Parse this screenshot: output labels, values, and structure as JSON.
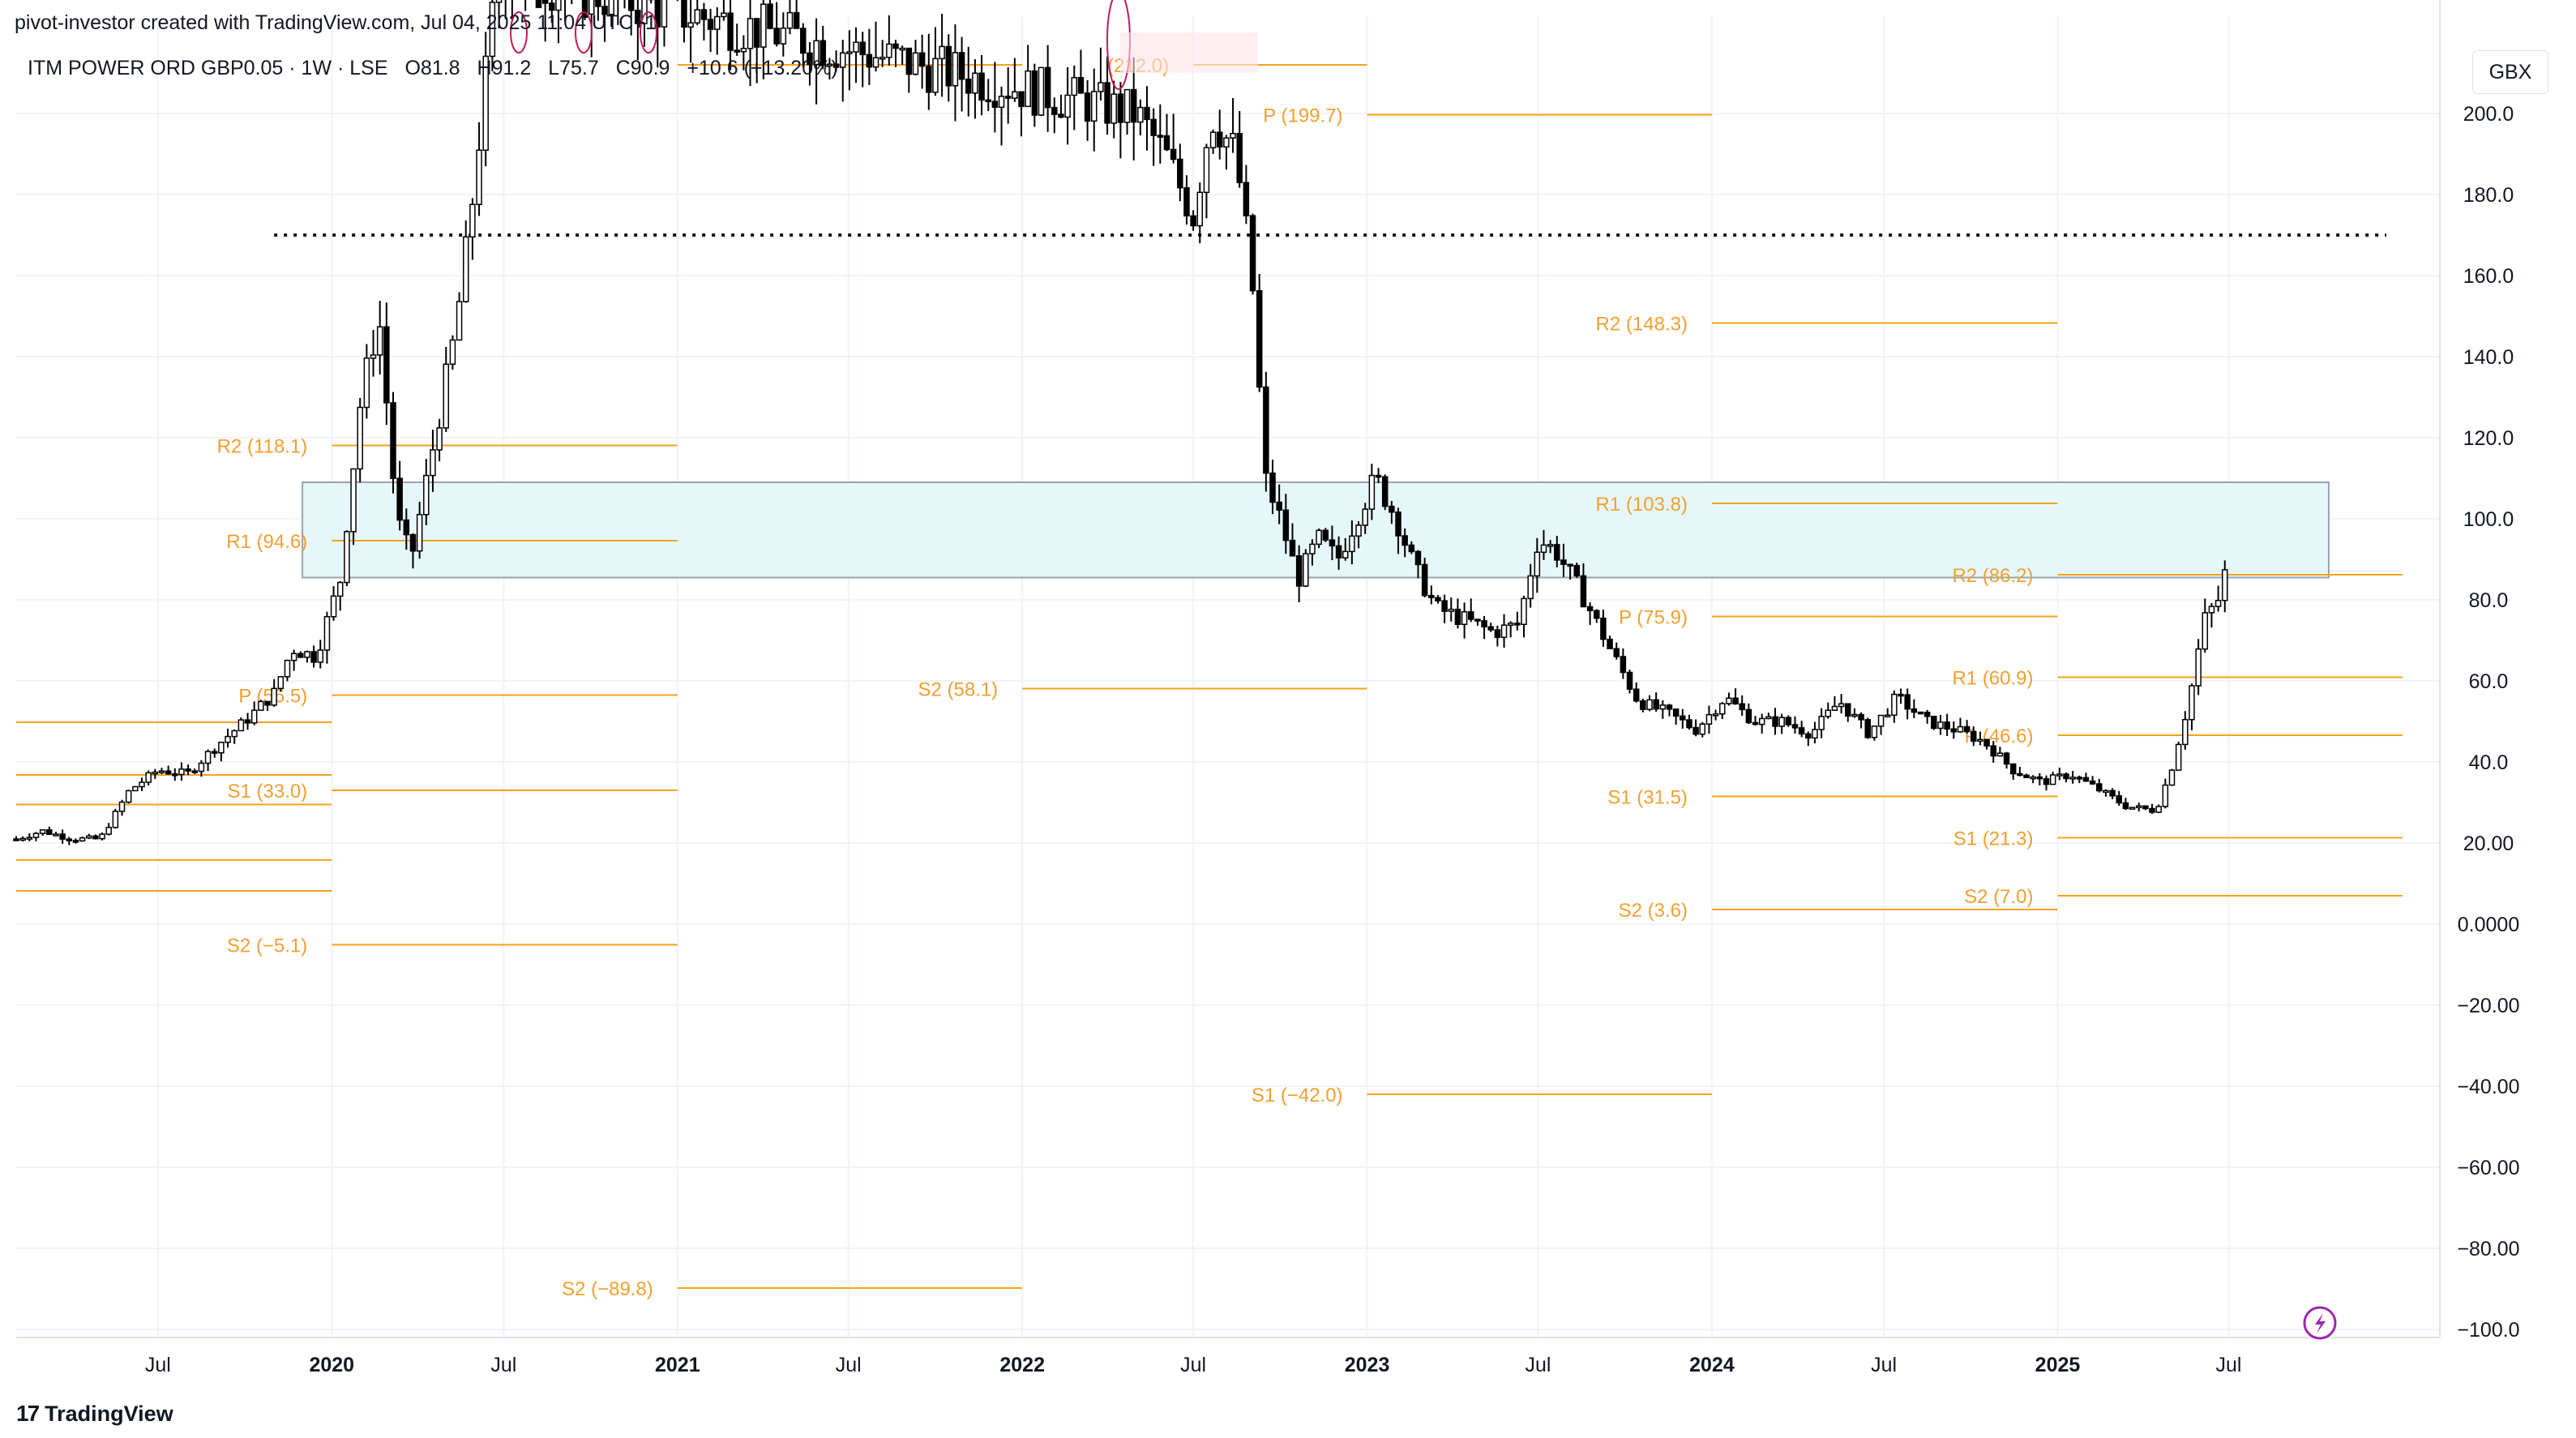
{
  "header": {
    "created_line": "pivot-investor created with TradingView.com, Jul 04, 2025 11:04 UTC+1",
    "symbol": "ITM POWER ORD GBP0.05 · 1W · LSE",
    "open": "O81.8",
    "high": "H91.2",
    "low": "L75.7",
    "close": "C90.9",
    "change": "+10.6 (+13.20%)"
  },
  "currency": "GBX",
  "footer_logo": "TradingView",
  "colors": {
    "pivot": "#f7a21b",
    "pivot_text": "#f0a030",
    "zone_fill": "#e6f7fa",
    "zone_stroke": "#9aa3ad",
    "candle": "#000000",
    "grid": "#f0f3fa",
    "dotted": "#131722"
  },
  "chart_data": {
    "type": "candlestick",
    "title": "ITM POWER ORD GBP0.05 · 1W · LSE",
    "ylabel": "GBX",
    "ylim": [
      -100,
      220
    ],
    "xlim": [
      "2019-02-01",
      "2026-02-01"
    ],
    "y_ticks": [
      "200.0",
      "180.0",
      "160.0",
      "140.0",
      "120.0",
      "100.0",
      "80.0",
      "60.0",
      "40.0",
      "20.00",
      "0.0000",
      "−20.00",
      "−40.00",
      "−60.00",
      "−80.00",
      "−100.0"
    ],
    "x_ticks": [
      {
        "label": "Jul",
        "date": "2019-07-01",
        "bold": false
      },
      {
        "label": "2020",
        "date": "2020-01-01",
        "bold": true
      },
      {
        "label": "Jul",
        "date": "2020-07-01",
        "bold": false
      },
      {
        "label": "2021",
        "date": "2021-01-01",
        "bold": true
      },
      {
        "label": "Jul",
        "date": "2021-07-01",
        "bold": false
      },
      {
        "label": "2022",
        "date": "2022-01-01",
        "bold": true
      },
      {
        "label": "Jul",
        "date": "2022-07-01",
        "bold": false
      },
      {
        "label": "2023",
        "date": "2023-01-01",
        "bold": true
      },
      {
        "label": "Jul",
        "date": "2023-07-01",
        "bold": false
      },
      {
        "label": "2024",
        "date": "2024-01-01",
        "bold": true
      },
      {
        "label": "Jul",
        "date": "2024-07-01",
        "bold": false
      },
      {
        "label": "2025",
        "date": "2025-01-01",
        "bold": true
      },
      {
        "label": "Jul",
        "date": "2025-07-01",
        "bold": false
      }
    ],
    "pivot_levels": [
      {
        "label": "R2 (118.1)",
        "value": 118.1,
        "from": "2020-01-01",
        "to": "2021-01-01"
      },
      {
        "label": "R1 (94.6)",
        "value": 94.6,
        "from": "2020-01-01",
        "to": "2021-01-01"
      },
      {
        "label": "P (56.5)",
        "value": 56.5,
        "from": "2020-01-01",
        "to": "2021-01-01"
      },
      {
        "label": "S1 (33.0)",
        "value": 33.0,
        "from": "2020-01-01",
        "to": "2021-01-01"
      },
      {
        "label": "S2 (−5.1)",
        "value": -5.1,
        "from": "2020-01-01",
        "to": "2021-01-01"
      },
      {
        "label": "",
        "value": 49.8,
        "from": "2019-02-01",
        "to": "2020-01-01"
      },
      {
        "label": "",
        "value": 36.8,
        "from": "2019-02-01",
        "to": "2020-01-01"
      },
      {
        "label": "",
        "value": 29.5,
        "from": "2019-02-01",
        "to": "2020-01-01"
      },
      {
        "label": "",
        "value": 15.8,
        "from": "2019-02-01",
        "to": "2020-01-01"
      },
      {
        "label": "",
        "value": 8.2,
        "from": "2019-02-01",
        "to": "2020-01-01"
      },
      {
        "label": "",
        "value": 212,
        "from": "2021-01-01",
        "to": "2022-01-01"
      },
      {
        "label": "S2 (−89.8)",
        "value": -89.8,
        "from": "2021-01-01",
        "to": "2022-01-01"
      },
      {
        "label": "(212.0)",
        "value": 212.0,
        "from": "2022-07-01",
        "to": "2023-01-01"
      },
      {
        "label": "P (199.7)",
        "value": 199.7,
        "from": "2023-01-01",
        "to": "2024-01-01"
      },
      {
        "label": "S1 (−42.0)",
        "value": -42.0,
        "from": "2023-01-01",
        "to": "2024-01-01"
      },
      {
        "label": "S2 (58.1)",
        "value": 58.1,
        "from": "2022-01-01",
        "to": "2023-01-01"
      },
      {
        "label": "R2 (148.3)",
        "value": 148.3,
        "from": "2024-01-01",
        "to": "2025-01-01"
      },
      {
        "label": "R1 (103.8)",
        "value": 103.8,
        "from": "2024-01-01",
        "to": "2025-01-01"
      },
      {
        "label": "P (75.9)",
        "value": 75.9,
        "from": "2024-01-01",
        "to": "2025-01-01"
      },
      {
        "label": "S1 (31.5)",
        "value": 31.5,
        "from": "2024-01-01",
        "to": "2025-01-01"
      },
      {
        "label": "S2 (3.6)",
        "value": 3.6,
        "from": "2024-01-01",
        "to": "2025-01-01"
      },
      {
        "label": "R2 (86.2)",
        "value": 86.2,
        "from": "2025-01-01",
        "to": "2026-01-01"
      },
      {
        "label": "R1 (60.9)",
        "value": 60.9,
        "from": "2025-01-01",
        "to": "2026-01-01"
      },
      {
        "label": "P (46.6)",
        "value": 46.6,
        "from": "2025-01-01",
        "to": "2026-01-01"
      },
      {
        "label": "S1 (21.3)",
        "value": 21.3,
        "from": "2025-01-01",
        "to": "2026-01-01"
      },
      {
        "label": "S2 (7.0)",
        "value": 7.0,
        "from": "2025-01-01",
        "to": "2026-01-01"
      }
    ],
    "dotted_line": {
      "value": 170,
      "from": "2019-11-01",
      "to": "2025-12-15"
    },
    "zone": {
      "from": "2019-12-01",
      "to": "2025-10-15",
      "low": 85.5,
      "high": 109
    },
    "series": [
      {
        "name": "ITM POWER ORD GBP0.05",
        "points": [
          [
            "2019-02-01",
            21
          ],
          [
            "2019-03-01",
            23
          ],
          [
            "2019-04-01",
            21
          ],
          [
            "2019-05-01",
            21
          ],
          [
            "2019-06-01",
            33
          ],
          [
            "2019-07-01",
            38
          ],
          [
            "2019-08-01",
            37
          ],
          [
            "2019-09-01",
            44
          ],
          [
            "2019-10-01",
            50
          ],
          [
            "2019-11-01",
            57
          ],
          [
            "2019-11-20",
            68
          ],
          [
            "2019-12-15",
            66
          ],
          [
            "2020-01-10",
            85
          ],
          [
            "2020-02-01",
            130
          ],
          [
            "2020-02-20",
            150
          ],
          [
            "2020-03-10",
            100
          ],
          [
            "2020-03-25",
            90
          ],
          [
            "2020-04-15",
            115
          ],
          [
            "2020-05-10",
            145
          ],
          [
            "2020-05-25",
            170
          ],
          [
            "2020-06-10",
            205
          ],
          [
            "2020-06-25",
            235
          ],
          [
            "2022-05-01",
            200
          ],
          [
            "2022-06-01",
            190
          ],
          [
            "2022-07-01",
            175
          ],
          [
            "2022-07-20",
            200
          ],
          [
            "2022-08-15",
            190
          ],
          [
            "2022-09-01",
            160
          ],
          [
            "2022-09-15",
            110
          ],
          [
            "2022-10-01",
            100
          ],
          [
            "2022-10-20",
            85
          ],
          [
            "2022-11-10",
            95
          ],
          [
            "2022-12-01",
            90
          ],
          [
            "2022-12-20",
            100
          ],
          [
            "2023-01-10",
            110
          ],
          [
            "2023-02-01",
            100
          ],
          [
            "2023-02-20",
            88
          ],
          [
            "2023-03-15",
            78
          ],
          [
            "2023-04-15",
            75
          ],
          [
            "2023-05-15",
            72
          ],
          [
            "2023-06-10",
            74
          ],
          [
            "2023-07-01",
            95
          ],
          [
            "2023-07-20",
            92
          ],
          [
            "2023-08-15",
            82
          ],
          [
            "2023-09-15",
            68
          ],
          [
            "2023-10-15",
            55
          ],
          [
            "2023-11-15",
            52
          ],
          [
            "2023-12-15",
            48
          ],
          [
            "2024-01-15",
            56
          ],
          [
            "2024-02-15",
            50
          ],
          [
            "2024-03-15",
            50
          ],
          [
            "2024-04-15",
            47
          ],
          [
            "2024-05-15",
            55
          ],
          [
            "2024-06-15",
            47
          ],
          [
            "2024-07-15",
            56
          ],
          [
            "2024-08-15",
            50
          ],
          [
            "2024-09-15",
            48
          ],
          [
            "2024-10-15",
            45
          ],
          [
            "2024-11-15",
            38
          ],
          [
            "2024-12-15",
            35
          ],
          [
            "2025-01-15",
            37
          ],
          [
            "2025-02-15",
            33
          ],
          [
            "2025-03-15",
            29
          ],
          [
            "2025-04-15",
            28
          ],
          [
            "2025-05-01",
            38
          ],
          [
            "2025-05-20",
            55
          ],
          [
            "2025-06-05",
            75
          ],
          [
            "2025-06-20",
            80
          ],
          [
            "2025-07-01",
            90
          ]
        ]
      }
    ]
  }
}
